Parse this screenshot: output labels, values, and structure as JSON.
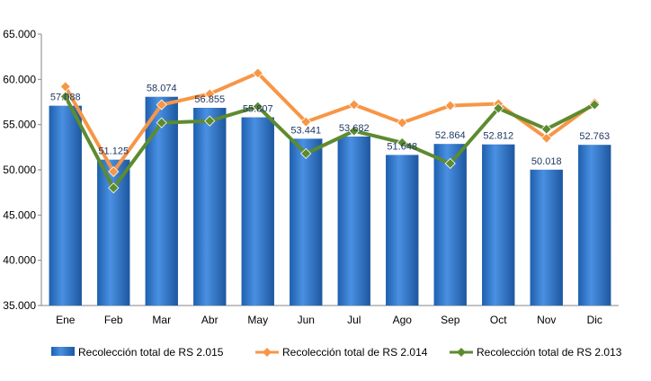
{
  "chart_data": {
    "type": "bar",
    "categories": [
      "Ene",
      "Feb",
      "Mar",
      "Abr",
      "May",
      "Jun",
      "Jul",
      "Ago",
      "Sep",
      "Oct",
      "Nov",
      "Dic"
    ],
    "ylim": [
      35000,
      65000
    ],
    "yticks": [
      "35.000",
      "40.000",
      "45.000",
      "50.000",
      "55.000",
      "60.000",
      "65.000"
    ],
    "ytick_values": [
      35000,
      40000,
      45000,
      50000,
      55000,
      60000,
      65000
    ],
    "series": [
      {
        "name": "Recolección total de RS 2.015",
        "type": "bar",
        "color": "#2e75c8",
        "values": [
          57088,
          51125,
          58074,
          56855,
          55807,
          53441,
          53682,
          51648,
          52864,
          52812,
          50018,
          52763
        ],
        "labels": [
          "57.088",
          "51.125",
          "58.074",
          "56.855",
          "55.807",
          "53.441",
          "53.682",
          "51.648",
          "52.864",
          "52.812",
          "50.018",
          "52.763"
        ]
      },
      {
        "name": "Recolección total de RS 2.014",
        "type": "line",
        "color": "#f79646",
        "values": [
          59200,
          49800,
          57200,
          58400,
          60700,
          55300,
          57200,
          55200,
          57100,
          57300,
          53500,
          57400
        ]
      },
      {
        "name": "Recolección total de RS 2.013",
        "type": "line",
        "color": "#5d8b2f",
        "values": [
          58100,
          48000,
          55200,
          55400,
          57000,
          51800,
          54300,
          53000,
          50700,
          56800,
          54500,
          57200
        ]
      }
    ],
    "grid": false,
    "legend_position": "bottom"
  }
}
